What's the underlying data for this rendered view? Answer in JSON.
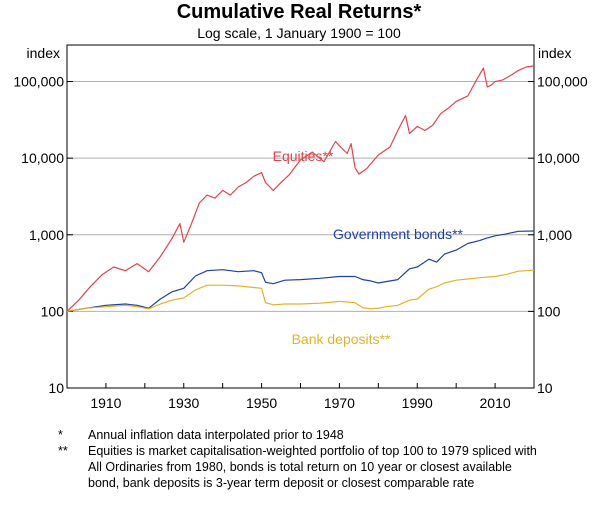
{
  "chart_data": {
    "type": "line",
    "title": "Cumulative Real Returns*",
    "subtitle": "Log scale, 1 January 1900 = 100",
    "y_unit_left": "index",
    "y_unit_right": "index",
    "y_scale": "log",
    "ylim": [
      10,
      300000
    ],
    "xlim": [
      1900,
      2020
    ],
    "y_ticks": [
      10,
      100,
      1000,
      10000,
      100000
    ],
    "y_tick_labels": [
      "10",
      "100",
      "1,000",
      "10,000",
      "100,000"
    ],
    "x_ticks": [
      1910,
      1930,
      1950,
      1970,
      1990,
      2010
    ],
    "x_tick_labels": [
      "1910",
      "1930",
      "1950",
      "1970",
      "1990",
      "2010"
    ],
    "grid": true,
    "series": [
      {
        "name": "Equities**",
        "color": "#e0454d",
        "x": [
          1900,
          1903,
          1906,
          1909,
          1912,
          1915,
          1918,
          1921,
          1924,
          1927,
          1929,
          1930,
          1932,
          1934,
          1936,
          1938,
          1940,
          1942,
          1944,
          1946,
          1948,
          1950,
          1951,
          1953,
          1955,
          1957,
          1960,
          1963,
          1966,
          1969,
          1970,
          1972,
          1973,
          1974,
          1975,
          1977,
          1980,
          1983,
          1985,
          1987,
          1988,
          1990,
          1992,
          1994,
          1996,
          1998,
          2000,
          2003,
          2005,
          2007,
          2008,
          2009,
          2010,
          2012,
          2014,
          2016,
          2018,
          2020
        ],
        "y": [
          100,
          140,
          210,
          300,
          380,
          340,
          420,
          330,
          520,
          900,
          1400,
          800,
          1400,
          2600,
          3300,
          3000,
          3800,
          3300,
          4200,
          4800,
          5800,
          6500,
          4800,
          3800,
          4800,
          6000,
          9500,
          12000,
          9000,
          16500,
          14500,
          11500,
          15500,
          7500,
          6200,
          7300,
          11000,
          14000,
          23000,
          36000,
          21000,
          26000,
          23000,
          27000,
          38000,
          45000,
          55000,
          65000,
          100000,
          150000,
          85000,
          90000,
          100000,
          105000,
          120000,
          140000,
          155000,
          160000
        ]
      },
      {
        "name": "Government bonds**",
        "color": "#1f3fa5",
        "x": [
          1900,
          1905,
          1910,
          1915,
          1918,
          1921,
          1924,
          1927,
          1930,
          1933,
          1936,
          1940,
          1944,
          1948,
          1950,
          1951,
          1953,
          1956,
          1960,
          1965,
          1970,
          1974,
          1976,
          1978,
          1980,
          1982,
          1985,
          1988,
          1990,
          1993,
          1995,
          1997,
          2000,
          2003,
          2006,
          2008,
          2010,
          2013,
          2016,
          2020
        ],
        "y": [
          100,
          110,
          120,
          125,
          120,
          110,
          145,
          180,
          200,
          290,
          340,
          350,
          330,
          340,
          320,
          240,
          230,
          255,
          260,
          270,
          285,
          285,
          260,
          250,
          235,
          245,
          260,
          360,
          380,
          480,
          440,
          560,
          630,
          770,
          840,
          910,
          970,
          1030,
          1110,
          1120
        ]
      },
      {
        "name": "Bank deposits**",
        "color": "#e2b22a",
        "x": [
          1900,
          1905,
          1910,
          1915,
          1918,
          1921,
          1924,
          1927,
          1930,
          1933,
          1936,
          1940,
          1944,
          1948,
          1950,
          1951,
          1953,
          1956,
          1960,
          1965,
          1970,
          1974,
          1976,
          1978,
          1980,
          1982,
          1985,
          1988,
          1990,
          1993,
          1995,
          1997,
          2000,
          2003,
          2006,
          2010,
          2013,
          2016,
          2020
        ],
        "y": [
          100,
          110,
          115,
          120,
          115,
          108,
          125,
          140,
          150,
          190,
          220,
          220,
          215,
          205,
          200,
          130,
          122,
          125,
          125,
          128,
          135,
          130,
          112,
          108,
          110,
          115,
          120,
          140,
          145,
          195,
          210,
          235,
          255,
          265,
          275,
          285,
          305,
          335,
          345
        ]
      }
    ]
  },
  "notes": [
    {
      "mark": "*",
      "text": "Annual inflation data interpolated prior to 1948"
    },
    {
      "mark": "**",
      "text": "Equities is market capitalisation-weighted portfolio of top 100 to 1979 spliced with All Ordinaries from 1980, bonds is total return on 10 year or closest available bond, bank deposits is 3-year term deposit or closest comparable rate"
    }
  ]
}
